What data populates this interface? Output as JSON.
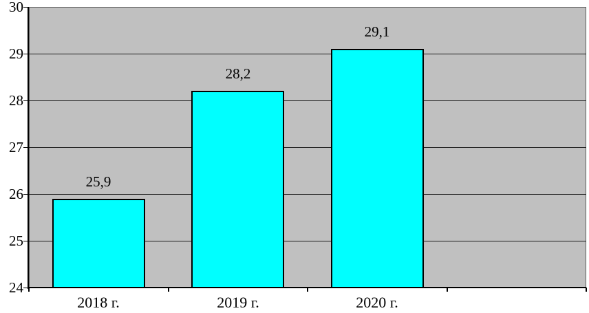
{
  "chart_data": {
    "type": "bar",
    "title": "",
    "xlabel": "",
    "ylabel": "",
    "categories": [
      "2018 г.",
      "2019 г.",
      "2020 г."
    ],
    "values": [
      25.9,
      28.2,
      29.1
    ],
    "value_labels": [
      "25,9",
      "28,2",
      "29,1"
    ],
    "ylim": [
      24,
      30
    ],
    "yticks": [
      24,
      25,
      26,
      27,
      28,
      29,
      30
    ],
    "grid": "horizontal",
    "legend": "none",
    "category_slots": 4,
    "colors": {
      "bar_fill": "#00ffff",
      "bar_border": "#000000",
      "plot_background": "#c0c0c0",
      "plot_border": "#5a5a5a",
      "gridline": "#1a1a1a",
      "axis": "#000000",
      "text": "#000000",
      "outer_background": "#ffffff"
    }
  }
}
